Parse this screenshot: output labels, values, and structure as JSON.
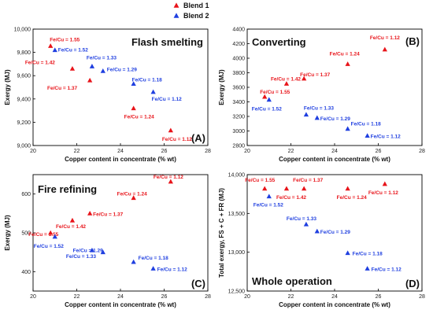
{
  "legend": {
    "entries": [
      {
        "name": "Blend 1",
        "color": "#e8141a",
        "marker": "triangle-up"
      },
      {
        "name": "Blend 2",
        "color": "#1f3fe0",
        "marker": "triangle-up"
      }
    ]
  },
  "colors": {
    "blend1": "#e8141a",
    "blend2": "#1f3fe0"
  },
  "chart_data": [
    {
      "id": "A",
      "type": "scatter",
      "title": "Flash smelting",
      "panel_letter": "(A)",
      "xlabel": "Copper content in concentrate (% wt)",
      "ylabel": "Exergy (MJ)",
      "xlim": [
        20,
        28
      ],
      "ylim": [
        9000,
        10000
      ],
      "xticks": [
        "20",
        "22",
        "24",
        "26",
        "28"
      ],
      "yticks": [
        "9,000",
        "9,200",
        "9,400",
        "9,600",
        "9,800",
        "10,000"
      ],
      "ytick_values": [
        9000,
        9200,
        9400,
        9600,
        9800,
        10000
      ],
      "series": [
        {
          "name": "Blend 1",
          "points": [
            {
              "x": 20.8,
              "y": 9855,
              "label": "Fe/Cu = 1.55"
            },
            {
              "x": 21.8,
              "y": 9660,
              "label": "Fe/Cu = 1.42"
            },
            {
              "x": 22.6,
              "y": 9560,
              "label": "Fe/Cu = 1.37"
            },
            {
              "x": 24.6,
              "y": 9320,
              "label": "Fe/Cu = 1.24"
            },
            {
              "x": 26.3,
              "y": 9130,
              "label": "Fe/Cu = 1.12"
            }
          ]
        },
        {
          "name": "Blend 2",
          "points": [
            {
              "x": 21.0,
              "y": 9820,
              "label": "Fe/Cu = 1.52"
            },
            {
              "x": 22.7,
              "y": 9680,
              "label": "Fe/Cu = 1.33"
            },
            {
              "x": 23.2,
              "y": 9640,
              "label": "Fe/Cu = 1.29"
            },
            {
              "x": 24.6,
              "y": 9530,
              "label": "Fe/Cu = 1.18"
            },
            {
              "x": 25.5,
              "y": 9460,
              "label": "Fe/Cu = 1.12"
            }
          ]
        }
      ]
    },
    {
      "id": "B",
      "type": "scatter",
      "title": "Converting",
      "panel_letter": "(B)",
      "xlabel": "Copper content in concentrate (% wt)",
      "ylabel": "Exergy (MJ)",
      "xlim": [
        20,
        28
      ],
      "ylim": [
        2800,
        4400
      ],
      "xticks": [
        "20",
        "22",
        "24",
        "26",
        "28"
      ],
      "yticks": [
        "2800",
        "3000",
        "3200",
        "3400",
        "3600",
        "3800",
        "4000",
        "4200",
        "4400"
      ],
      "ytick_values": [
        2800,
        3000,
        3200,
        3400,
        3600,
        3800,
        4000,
        4200,
        4400
      ],
      "series": [
        {
          "name": "Blend 1",
          "points": [
            {
              "x": 20.8,
              "y": 3470,
              "label": "Fe/Cu = 1.55"
            },
            {
              "x": 21.8,
              "y": 3650,
              "label": "Fe/Cu = 1.42"
            },
            {
              "x": 22.6,
              "y": 3720,
              "label": "Fe/Cu = 1.37"
            },
            {
              "x": 24.6,
              "y": 3920,
              "label": "Fe/Cu = 1.24"
            },
            {
              "x": 26.3,
              "y": 4120,
              "label": "Fe/Cu = 1.12"
            }
          ]
        },
        {
          "name": "Blend 2",
          "points": [
            {
              "x": 21.0,
              "y": 3430,
              "label": "Fe/Cu = 1.52"
            },
            {
              "x": 22.7,
              "y": 3225,
              "label": "Fe/Cu = 1.33"
            },
            {
              "x": 23.2,
              "y": 3180,
              "label": "Fe/Cu = 1.29"
            },
            {
              "x": 24.6,
              "y": 3030,
              "label": "Fe/Cu = 1.18"
            },
            {
              "x": 25.5,
              "y": 2935,
              "label": "Fe/Cu = 1.12"
            }
          ]
        }
      ]
    },
    {
      "id": "C",
      "type": "scatter",
      "title": "Fire refining",
      "panel_letter": "(C)",
      "xlabel": "Copper content in concentrate (% wt)",
      "ylabel": "Exergy (MJ)",
      "xlim": [
        20,
        28
      ],
      "ylim": [
        350,
        650
      ],
      "xticks": [
        "20",
        "22",
        "24",
        "26",
        "28"
      ],
      "yticks": [
        "400",
        "500",
        "600"
      ],
      "ytick_values": [
        400,
        500,
        600
      ],
      "series": [
        {
          "name": "Blend 1",
          "points": [
            {
              "x": 20.8,
              "y": 500,
              "label": "Fe/Cu = 1.55"
            },
            {
              "x": 21.8,
              "y": 532,
              "label": "Fe/Cu = 1.42"
            },
            {
              "x": 22.6,
              "y": 550,
              "label": "Fe/Cu = 1.37"
            },
            {
              "x": 24.6,
              "y": 590,
              "label": "Fe/Cu = 1.24"
            },
            {
              "x": 26.3,
              "y": 632,
              "label": "Fe/Cu = 1.12"
            }
          ]
        },
        {
          "name": "Blend 2",
          "points": [
            {
              "x": 21.0,
              "y": 490,
              "label": "Fe/Cu = 1.52"
            },
            {
              "x": 22.7,
              "y": 455,
              "label": "Fe/Cu = 1.33"
            },
            {
              "x": 23.2,
              "y": 450,
              "label": "Fe/Cu = 1.29"
            },
            {
              "x": 24.6,
              "y": 425,
              "label": "Fe/Cu = 1.18"
            },
            {
              "x": 25.5,
              "y": 408,
              "label": "Fe/Cu = 1.12"
            }
          ]
        }
      ]
    },
    {
      "id": "D",
      "type": "scatter",
      "title": "Whole operation",
      "panel_letter": "(D)",
      "xlabel": "Copper content in concentrate (% wt)",
      "ylabel": "Total exergy, FS + C + FR (MJ)",
      "xlim": [
        20,
        28
      ],
      "ylim": [
        12500,
        14000
      ],
      "xticks": [
        "20",
        "22",
        "24",
        "26",
        "28"
      ],
      "yticks": [
        "12,500",
        "13,000",
        "13,500",
        "14,000"
      ],
      "ytick_values": [
        12500,
        13000,
        13500,
        14000
      ],
      "series": [
        {
          "name": "Blend 1",
          "points": [
            {
              "x": 20.8,
              "y": 13820,
              "label": "Fe/Cu = 1.55"
            },
            {
              "x": 21.8,
              "y": 13820,
              "label": "Fe/Cu = 1.42"
            },
            {
              "x": 22.6,
              "y": 13820,
              "label": "Fe/Cu = 1.37"
            },
            {
              "x": 24.6,
              "y": 13820,
              "label": "Fe/Cu = 1.24"
            },
            {
              "x": 26.3,
              "y": 13880,
              "label": "Fe/Cu = 1.12"
            }
          ]
        },
        {
          "name": "Blend 2",
          "points": [
            {
              "x": 21.0,
              "y": 13720,
              "label": "Fe/Cu = 1.52"
            },
            {
              "x": 22.7,
              "y": 13360,
              "label": "Fe/Cu = 1.33"
            },
            {
              "x": 23.2,
              "y": 13270,
              "label": "Fe/Cu = 1.29"
            },
            {
              "x": 24.6,
              "y": 12990,
              "label": "Fe/Cu = 1.18"
            },
            {
              "x": 25.5,
              "y": 12790,
              "label": "Fe/Cu = 1.12"
            }
          ]
        }
      ]
    }
  ]
}
